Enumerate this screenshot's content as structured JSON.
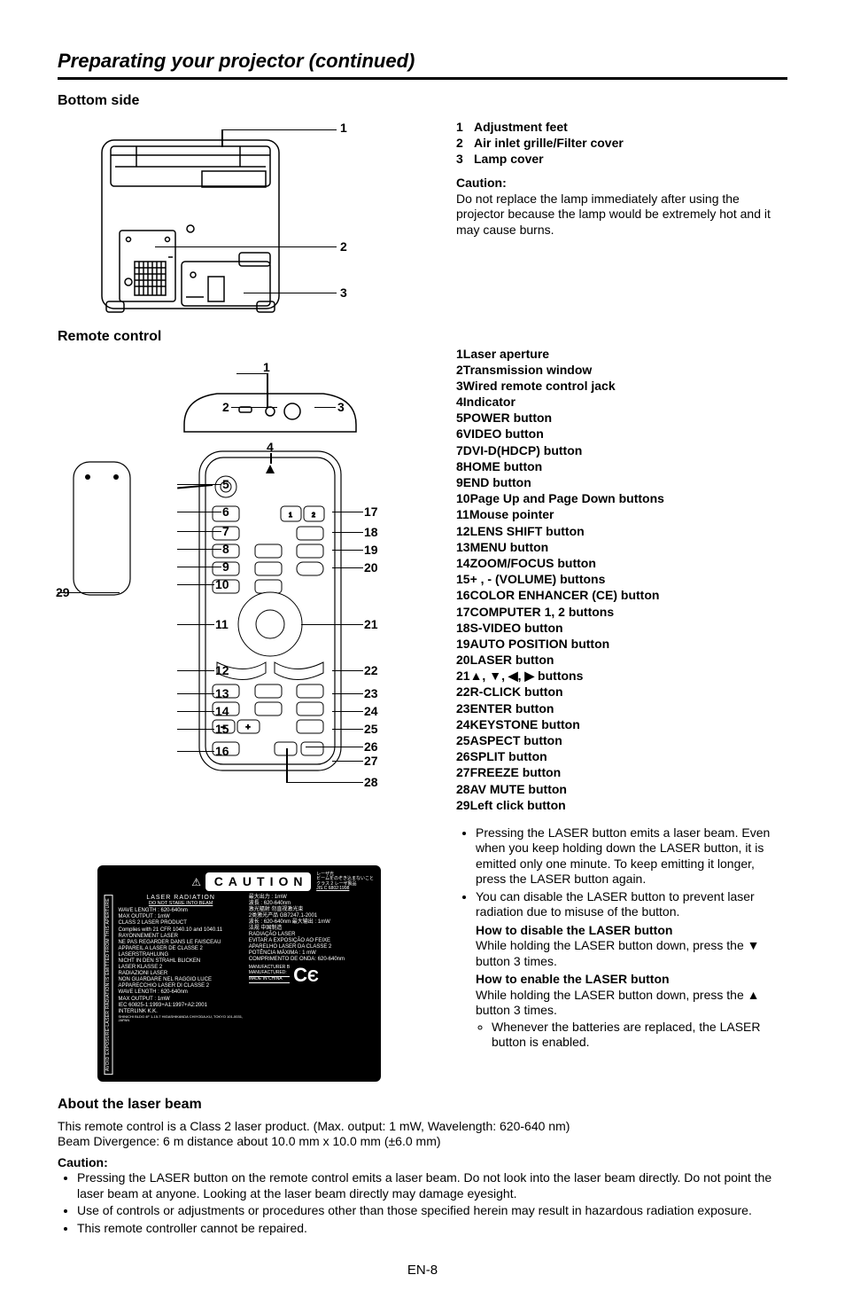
{
  "page_title": "Preparating your projector (continued)",
  "page_number": "EN-8",
  "bottom_side": {
    "heading": "Bottom side",
    "callouts": [
      "1",
      "2",
      "3"
    ],
    "legend": [
      {
        "n": "1",
        "t": "Adjustment feet"
      },
      {
        "n": "2",
        "t": "Air inlet grille/Filter cover"
      },
      {
        "n": "3",
        "t": "Lamp cover"
      }
    ],
    "caution_head": "Caution:",
    "caution_text": "Do not replace the lamp immediately after using the projector because the lamp would be extremely hot and it may cause burns."
  },
  "remote": {
    "heading": "Remote control",
    "legend": [
      {
        "n": "1",
        "t": "Laser aperture"
      },
      {
        "n": "2",
        "t": "Transmission window"
      },
      {
        "n": "3",
        "t": "Wired remote control jack"
      },
      {
        "n": "4",
        "t": "Indicator"
      },
      {
        "n": "5",
        "t": "POWER button"
      },
      {
        "n": "6",
        "t": "VIDEO button"
      },
      {
        "n": "7",
        "t": "DVI-D(HDCP) button"
      },
      {
        "n": "8",
        "t": "HOME button"
      },
      {
        "n": "9",
        "t": "END button"
      },
      {
        "n": "10",
        "t": "Page Up and Page Down buttons"
      },
      {
        "n": "11",
        "t": "Mouse pointer"
      },
      {
        "n": "12",
        "t": "LENS SHIFT button"
      },
      {
        "n": "13",
        "t": "MENU button"
      },
      {
        "n": "14",
        "t": "ZOOM/FOCUS button"
      },
      {
        "n": "15",
        "t": "+ , - (VOLUME) buttons"
      },
      {
        "n": "16",
        "t": "COLOR ENHANCER (CE) button"
      },
      {
        "n": "17",
        "t": "COMPUTER 1, 2 buttons"
      },
      {
        "n": "18",
        "t": "S-VIDEO button"
      },
      {
        "n": "19",
        "t": "AUTO POSITION button"
      },
      {
        "n": "20",
        "t": "LASER button"
      },
      {
        "n": "21",
        "t": "▲, ▼, ◀, ▶ buttons"
      },
      {
        "n": "22",
        "t": "R-CLICK button"
      },
      {
        "n": "23",
        "t": "ENTER button"
      },
      {
        "n": "24",
        "t": "KEYSTONE button"
      },
      {
        "n": "25",
        "t": "ASPECT button"
      },
      {
        "n": "26",
        "t": "SPLIT button"
      },
      {
        "n": "27",
        "t": "FREEZE button"
      },
      {
        "n": "28",
        "t": "AV MUTE button"
      },
      {
        "n": "29",
        "t": "Left click button"
      }
    ],
    "bullets": [
      "Pressing the LASER button emits a laser beam. Even when you keep holding down the LASER button, it is emitted only one minute. To keep emitting it longer, press the LASER button again.",
      "You can disable the LASER button to prevent laser radiation due to misuse of the button."
    ],
    "disable_head": "How to disable the LASER button",
    "disable_text": "While holding the LASER button down, press the ▼ button 3 times.",
    "enable_head": "How to enable the LASER button",
    "enable_text": "While holding the LASER button down, press the ▲ button 3 times.",
    "enable_sub": "Whenever the batteries are replaced, the LASER button is enabled."
  },
  "about": {
    "heading": "About the laser beam",
    "line1": "This remote control is a Class 2 laser product. (Max. output: 1 mW, Wavelength: 620-640 nm)",
    "line2": "Beam Divergence: 6 m distance about 10.0 mm x 10.0 mm (±6.0 mm)",
    "caution_head": "Caution:",
    "items": [
      "Pressing the LASER button on the remote control emits a laser beam. Do not look into the laser beam directly. Do not point the laser beam at anyone. Looking at the laser beam directly may damage eyesight.",
      "Use of controls or adjustments or procedures other than those specified herein may result in hazardous radiation exposure.",
      "This remote controller cannot be repaired."
    ]
  },
  "caution_label": {
    "triangle": "⚠",
    "caution_word": "CAUTION",
    "side_text": "AVOID EXPOSURE-LASER RADIATION IS EMITTED FROM THIS APERTURE",
    "left_block": {
      "title": "LASER RADIATION",
      "do_not": "DO NOT STARE INTO BEAM",
      "lines": [
        "WAVE LENGTH : 620-640nm",
        "MAX OUTPUT : 1mW",
        "CLASS 2 LASER PRODUCT",
        "Complies with 21 CFR 1040.10 and 1040.11",
        "RAYONNEMENT LASER",
        "NE PAS REGARDER DANS LE FAISCEAU",
        "APPAREIL A LASER DE CLASSE 2",
        "LASERSTRAHLUNG",
        "NICHT IN DEN STRAHL BLICKEN",
        "LASER KLASSE 2",
        "RADIAZIONI LASER",
        "NON GUARDARE NEL RAGGIO LUCE",
        "APPARECCHIO LASER DI CLASSE 2",
        "WAVE LENGTH : 620-640nm",
        "MAX OUTPUT : 1mW",
        "IEC 60825-1:1993+A1:1997+A2:2001",
        "INTERLINK K.K.",
        "SHINICHI BLDG 4F 1-15-7 HIGASHIKANDA CHIYODA-KU, TOKYO 101-0031, JAPAN"
      ]
    },
    "right_block": {
      "lines": [
        "レーザ光",
        "ビームをのぞき込まないこと",
        "クラス 2 レーザ製品",
        "JIS C 6802:1998",
        "最大出力 : 1mW",
        "波長 : 620-640nm",
        "激光辐射  勿直视激光束",
        "2类激光产品  GB7247.1-2001",
        "波长 : 620-640nm  最大输出 : 1mW",
        "法规  中国制造",
        "RADIAÇÃO LASER",
        "EVITAR A EXPOSIÇÃO AO FEIXE",
        "APARELHO LASER DA CLASSE 2",
        "POTÊNCIA MÁXIMA : 1 mW",
        "COMPRIMENTO DE ONDA: 620-640nm"
      ]
    },
    "bottom_right": {
      "manufacturer": "MANUFACTURER B",
      "made": "MANUFACTURED:",
      "made_in": "MADE IN CHINA",
      "ce": "CE"
    }
  }
}
